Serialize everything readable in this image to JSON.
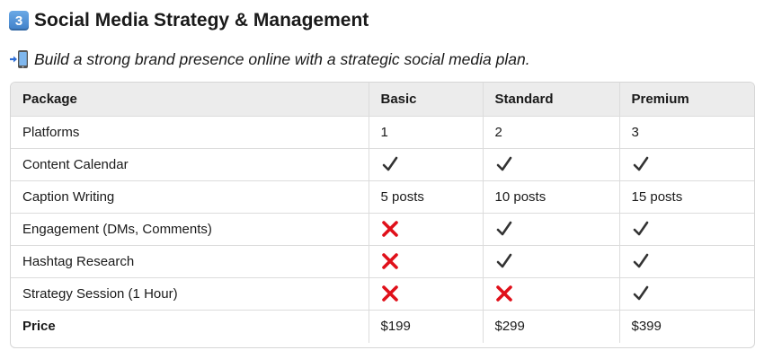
{
  "heading": {
    "number": "3",
    "text": "Social Media Strategy & Management"
  },
  "subtitle": {
    "text": "Build a strong brand presence online with a strategic social media plan.",
    "icon": "mobile-phone-arrow-icon"
  },
  "table": {
    "headers": [
      "Package",
      "Basic",
      "Standard",
      "Premium"
    ],
    "rows": [
      {
        "label": "Platforms",
        "cells": [
          {
            "type": "text",
            "value": "1"
          },
          {
            "type": "text",
            "value": "2"
          },
          {
            "type": "text",
            "value": "3"
          }
        ]
      },
      {
        "label": "Content Calendar",
        "cells": [
          {
            "type": "check"
          },
          {
            "type": "check"
          },
          {
            "type": "check"
          }
        ]
      },
      {
        "label": "Caption Writing",
        "cells": [
          {
            "type": "text",
            "value": "5 posts"
          },
          {
            "type": "text",
            "value": "10 posts"
          },
          {
            "type": "text",
            "value": "15 posts"
          }
        ]
      },
      {
        "label": "Engagement (DMs, Comments)",
        "cells": [
          {
            "type": "cross"
          },
          {
            "type": "check"
          },
          {
            "type": "check"
          }
        ]
      },
      {
        "label": "Hashtag Research",
        "cells": [
          {
            "type": "cross"
          },
          {
            "type": "check"
          },
          {
            "type": "check"
          }
        ]
      },
      {
        "label": "Strategy Session (1 Hour)",
        "cells": [
          {
            "type": "cross"
          },
          {
            "type": "cross"
          },
          {
            "type": "check"
          }
        ]
      },
      {
        "label": "Price",
        "bold": true,
        "cells": [
          {
            "type": "text",
            "value": "$199"
          },
          {
            "type": "text",
            "value": "$299"
          },
          {
            "type": "text",
            "value": "$399"
          }
        ]
      }
    ]
  },
  "colors": {
    "header_bg": "#ececec",
    "cross": "#e0101a",
    "check": "#333333",
    "keycap": "#4a8bd6"
  }
}
